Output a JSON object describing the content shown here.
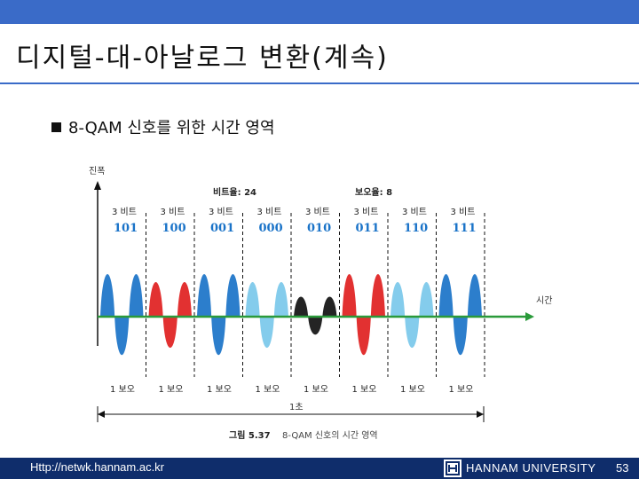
{
  "slide": {
    "title": "디지털-대-아날로그 변환(계속)",
    "bullet": "8-QAM 신호를 위한 시간 영역"
  },
  "figure": {
    "y_axis_label": "진폭",
    "x_axis_label": "시간",
    "bit_rate": "비트율: 24",
    "baud_rate": "보오율: 8",
    "unit_label": "3 비트",
    "unit_below": "1 보오",
    "second_label": "1초",
    "caption_num": "그림 5.37",
    "caption": "8-QAM 신호의 시간 영역",
    "symbols": [
      {
        "bits": "101",
        "color": "#1a73c8"
      },
      {
        "bits": "100",
        "color": "#e02020"
      },
      {
        "bits": "001",
        "color": "#1a73c8"
      },
      {
        "bits": "000",
        "color": "#7ac8ea"
      },
      {
        "bits": "010",
        "color": "#111111"
      },
      {
        "bits": "011",
        "color": "#e02020"
      },
      {
        "bits": "110",
        "color": "#7ac8ea"
      },
      {
        "bits": "111",
        "color": "#1a73c8"
      }
    ],
    "axis_color": "#2a9a3a",
    "bits_color": "#1a73c8"
  },
  "footer": {
    "url": "Http://netwk.hannam.ac.kr",
    "university": "HANNAM UNIVERSITY",
    "page": "53"
  }
}
